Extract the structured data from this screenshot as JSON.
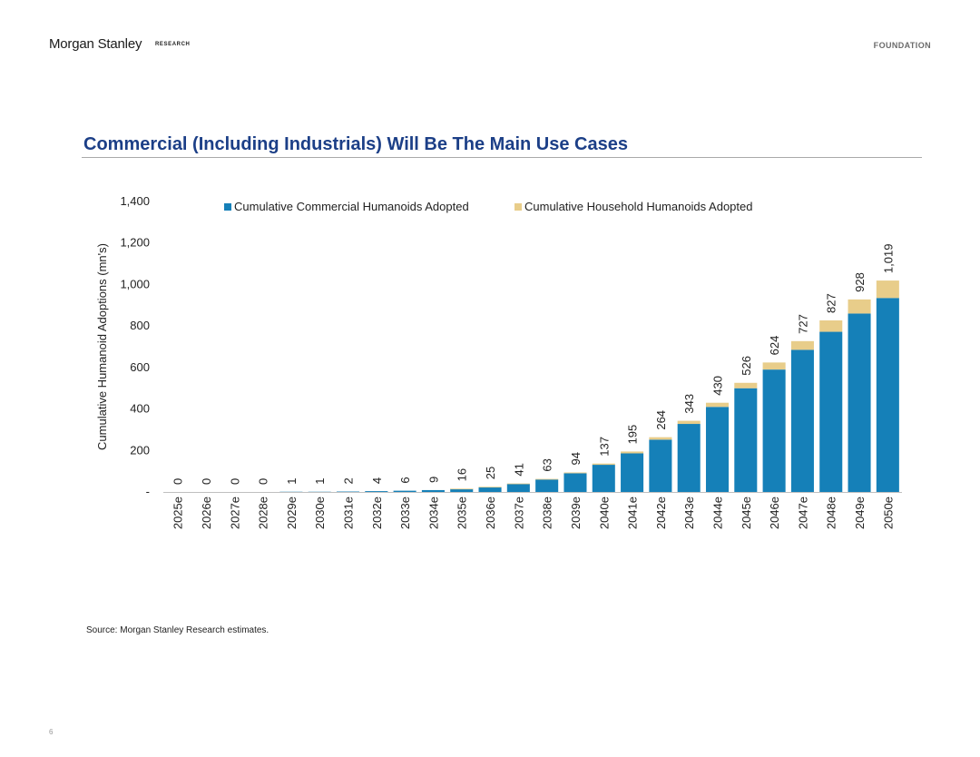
{
  "header": {
    "brand": "Morgan Stanley",
    "brand_sub": "RESEARCH",
    "tag": "FOUNDATION"
  },
  "slide_title": "Commercial (Including Industrials) Will Be The Main Use Cases",
  "footer": {
    "source": "Source: Morgan Stanley Research estimates.",
    "page_number": "6"
  },
  "colors": {
    "commercial": "#1580b8",
    "household": "#e8cd8a",
    "title": "#1c3f87"
  },
  "chart_data": {
    "type": "bar",
    "stacked": true,
    "categories": [
      "2025e",
      "2026e",
      "2027e",
      "2028e",
      "2029e",
      "2030e",
      "2031e",
      "2032e",
      "2033e",
      "2034e",
      "2035e",
      "2036e",
      "2037e",
      "2038e",
      "2039e",
      "2040e",
      "2041e",
      "2042e",
      "2043e",
      "2044e",
      "2045e",
      "2046e",
      "2047e",
      "2048e",
      "2049e",
      "2050e"
    ],
    "series": [
      {
        "name": "Cumulative Commercial Humanoids Adopted",
        "color": "#1580b8",
        "values": [
          0,
          0,
          0,
          0,
          1,
          1,
          2,
          4,
          6,
          9,
          15,
          24,
          39,
          60,
          90,
          131,
          186,
          252,
          328,
          410,
          500,
          590,
          685,
          772,
          860,
          935
        ]
      },
      {
        "name": "Cumulative Household Humanoids Adopted",
        "color": "#e8cd8a",
        "values": [
          0,
          0,
          0,
          0,
          0,
          0,
          0,
          0,
          0,
          0,
          1,
          1,
          2,
          3,
          4,
          6,
          9,
          12,
          15,
          20,
          26,
          34,
          42,
          55,
          68,
          84
        ]
      }
    ],
    "totals": [
      0,
      0,
      0,
      0,
      1,
      1,
      2,
      4,
      6,
      9,
      16,
      25,
      41,
      63,
      94,
      137,
      195,
      264,
      343,
      430,
      526,
      624,
      727,
      827,
      928,
      1019
    ],
    "total_labels": [
      "0",
      "0",
      "0",
      "0",
      "1",
      "1",
      "2",
      "4",
      "6",
      "9",
      "16",
      "25",
      "41",
      "63",
      "94",
      "137",
      "195",
      "264",
      "343",
      "430",
      "526",
      "624",
      "727",
      "827",
      "928",
      "1,019"
    ],
    "ylabel": "Cumulative Humanoid Adoptions (mn's)",
    "ylim": [
      0,
      1400
    ],
    "yticks": [
      0,
      200,
      400,
      600,
      800,
      1000,
      1200,
      1400
    ],
    "ytick_labels": [
      "-",
      "200",
      "400",
      "600",
      "800",
      "1,000",
      "1,200",
      "1,400"
    ],
    "grid": false,
    "legend_position": "top"
  }
}
